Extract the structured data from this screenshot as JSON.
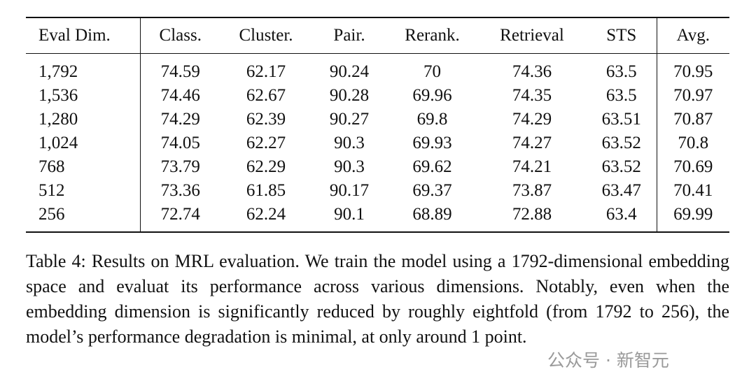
{
  "table": {
    "header": [
      "Eval Dim.",
      "Class.",
      "Cluster.",
      "Pair.",
      "Rerank.",
      "Retrieval",
      "STS",
      "Avg."
    ],
    "rows": [
      [
        "1,792",
        "74.59",
        "62.17",
        "90.24",
        "70",
        "74.36",
        "63.5",
        "70.95"
      ],
      [
        "1,536",
        "74.46",
        "62.67",
        "90.28",
        "69.96",
        "74.35",
        "63.5",
        "70.97"
      ],
      [
        "1,280",
        "74.29",
        "62.39",
        "90.27",
        "69.8",
        "74.29",
        "63.51",
        "70.87"
      ],
      [
        "1,024",
        "74.05",
        "62.27",
        "90.3",
        "69.93",
        "74.27",
        "63.52",
        "70.8"
      ],
      [
        "768",
        "73.79",
        "62.29",
        "90.3",
        "69.62",
        "74.21",
        "63.52",
        "70.69"
      ],
      [
        "512",
        "73.36",
        "61.85",
        "90.17",
        "69.37",
        "73.87",
        "63.47",
        "70.41"
      ],
      [
        "256",
        "72.74",
        "62.24",
        "90.1",
        "68.89",
        "72.88",
        "63.4",
        "69.99"
      ]
    ]
  },
  "caption": "Table 4: Results on MRL evaluation. We train the model using a 1792-dimensional embedding space and evaluat its performance across various dimensions. Notably, even when the embedding dimension is significantly reduced by roughly eightfold (from 1792 to 256), the model’s performance degradation is minimal, at only around 1 point.",
  "watermark": "公众号 · 新智元"
}
